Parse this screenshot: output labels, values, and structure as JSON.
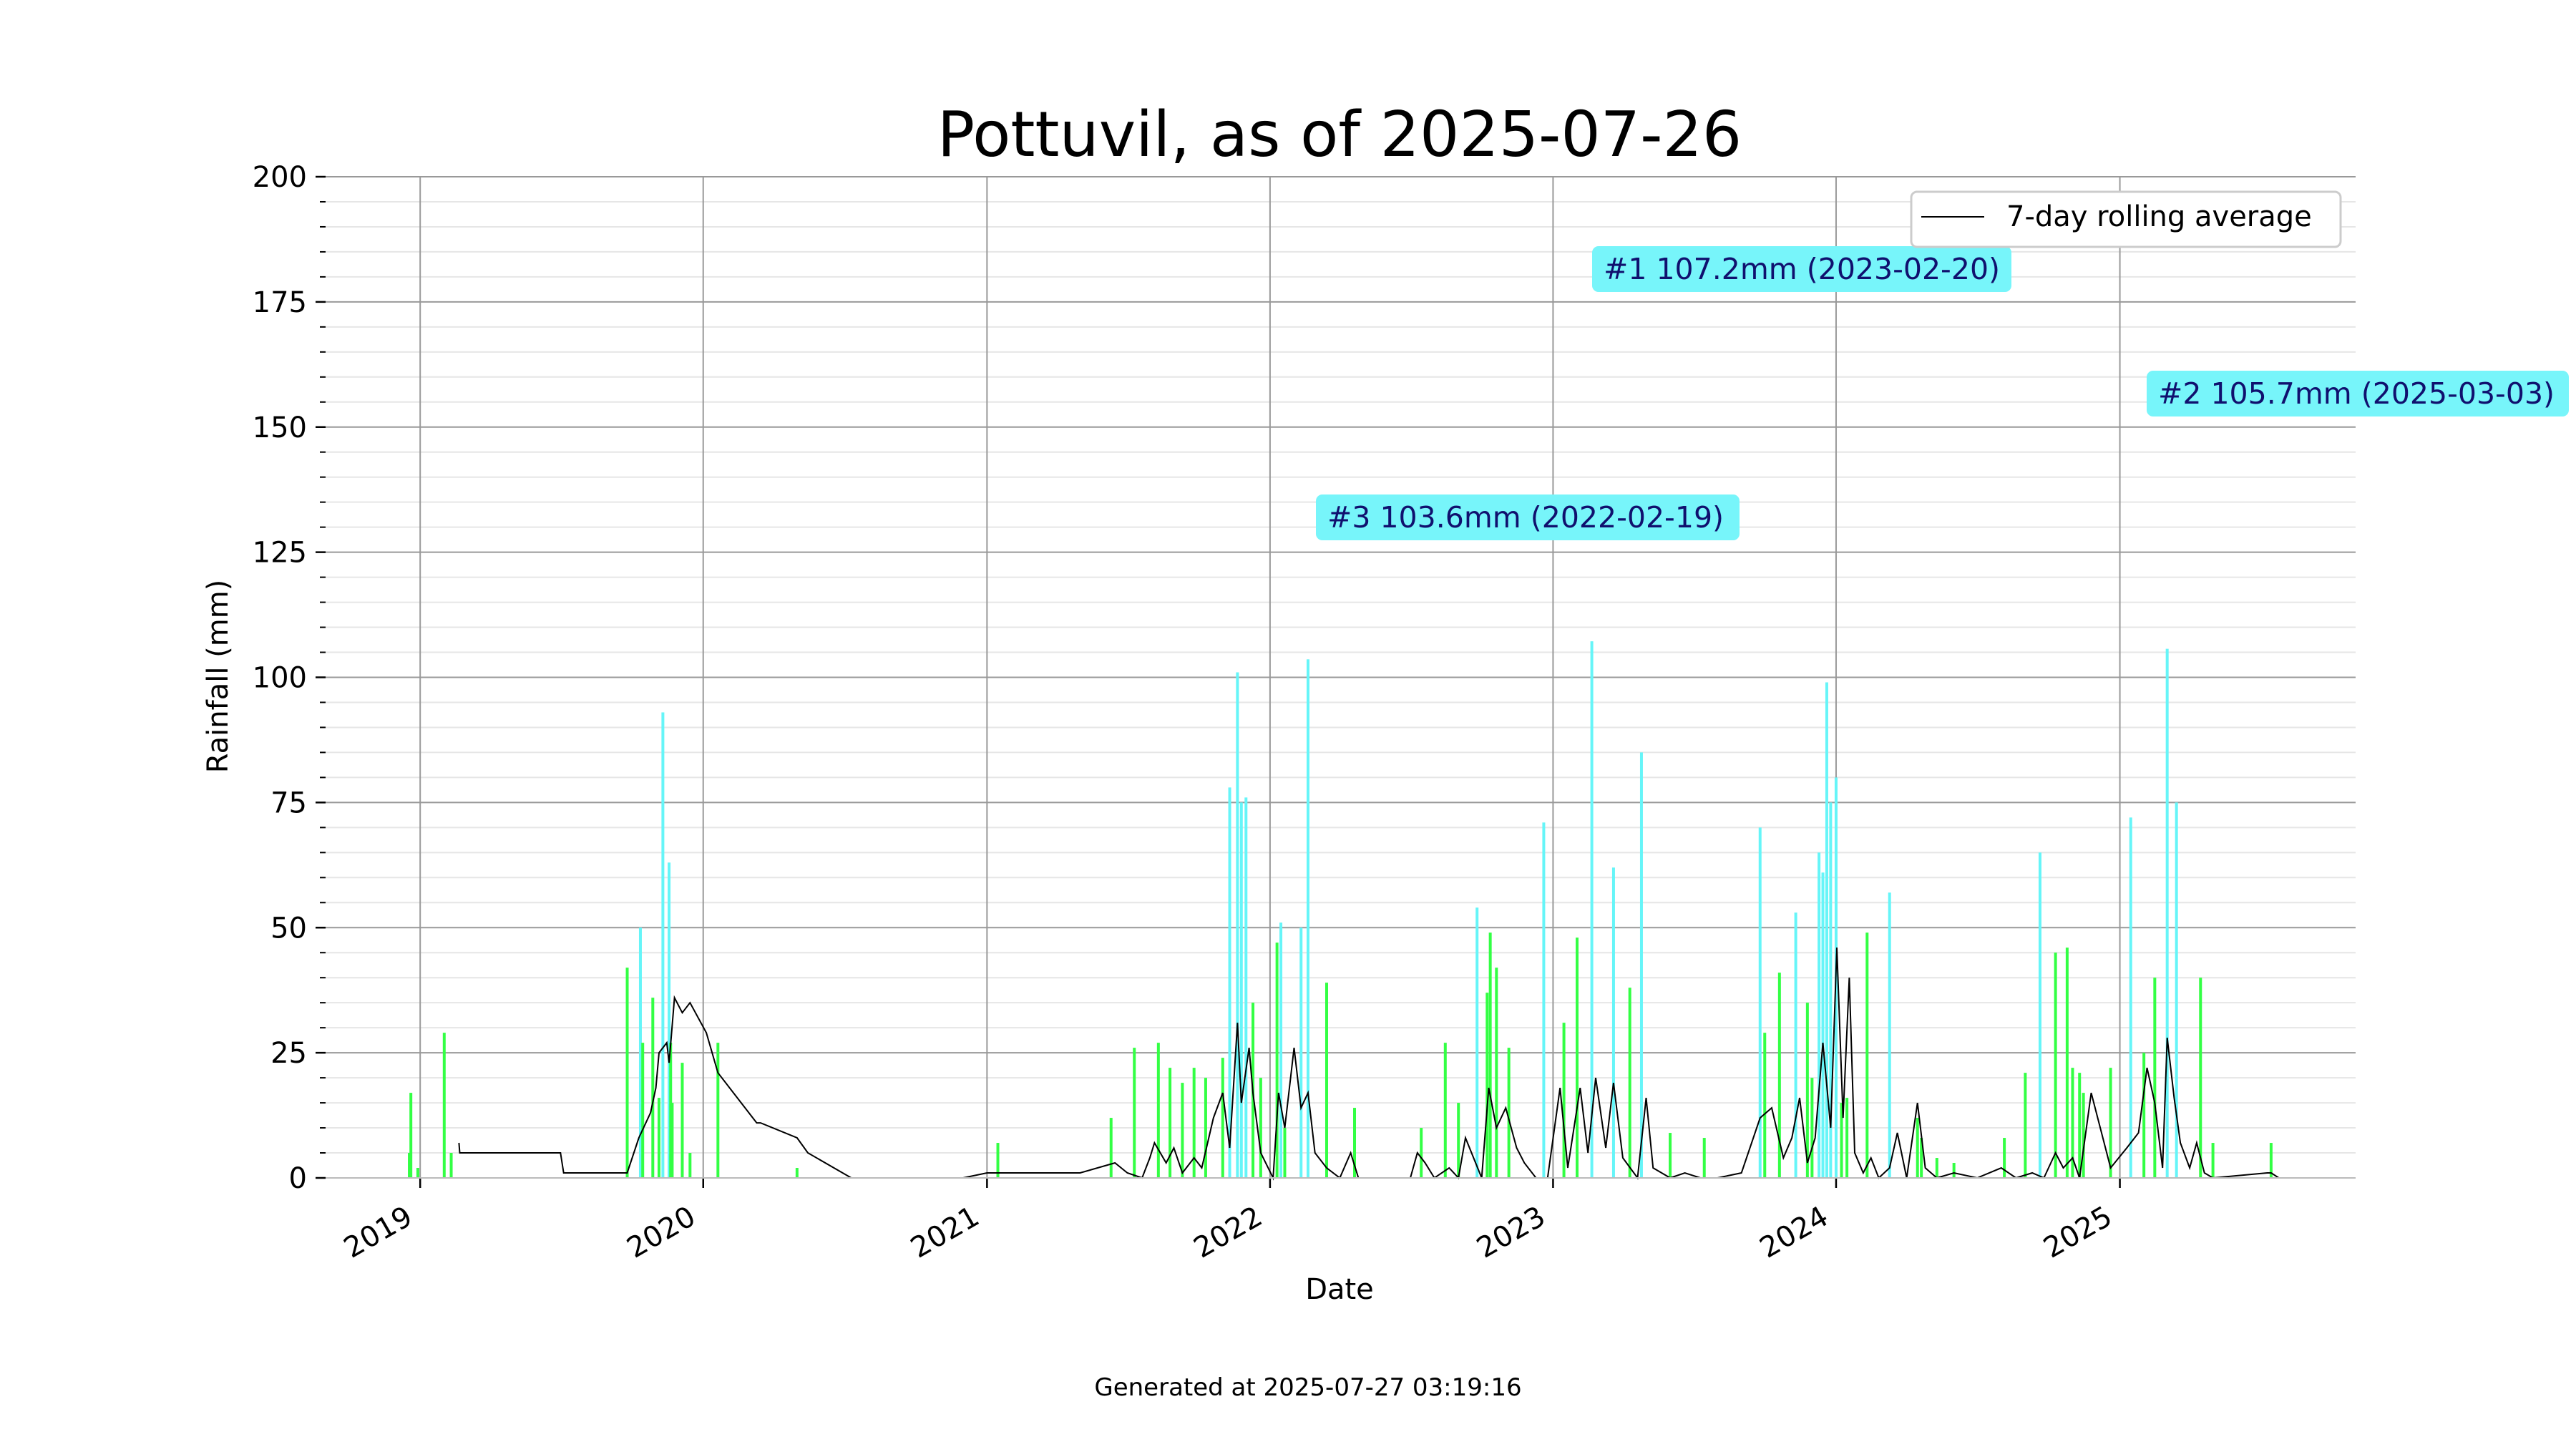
{
  "chart_data": {
    "type": "bar",
    "title": "Pottuvil, as of 2025-07-26",
    "xlabel": "Date",
    "ylabel": "Rainfall (mm)",
    "ylim": [
      0,
      200
    ],
    "xlim": [
      "2018-09-01",
      "2025-11-01"
    ],
    "y_ticks": [
      0,
      25,
      50,
      75,
      100,
      125,
      150,
      175,
      200
    ],
    "x_ticks": [
      "2019",
      "2020",
      "2021",
      "2022",
      "2023",
      "2024",
      "2025"
    ],
    "grid": true,
    "legend": {
      "position": "top-right",
      "entries": [
        "7-day rolling average"
      ]
    },
    "footer": "Generated at 2025-07-27 03:19:16",
    "colors": {
      "low": "#33ff44",
      "high": "#66f5f8",
      "line": "#000000",
      "label_box": "#77f5fa",
      "label_text": "#10106e"
    },
    "annotations": [
      {
        "rank": 1,
        "text": "#1 107.2mm (2023-02-20)",
        "date": "2023-02-20",
        "value": 107.2
      },
      {
        "rank": 2,
        "text": "#2 105.7mm (2025-03-03)",
        "date": "2025-03-03",
        "value": 105.7
      },
      {
        "rank": 3,
        "text": "#3 103.6mm (2022-02-19)",
        "date": "2022-02-19",
        "value": 103.6
      }
    ],
    "series": [
      {
        "name": "daily rainfall",
        "type": "bar",
        "x": [
          "2018-12-18",
          "2018-12-20",
          "2018-12-29",
          "2019-02-01",
          "2019-02-10",
          "2019-09-25",
          "2019-10-12",
          "2019-10-15",
          "2019-10-28",
          "2019-11-05",
          "2019-11-10",
          "2019-11-18",
          "2019-11-20",
          "2019-11-22",
          "2019-12-05",
          "2019-12-15",
          "2020-01-20",
          "2020-05-01",
          "2021-01-15",
          "2021-06-10",
          "2021-07-10",
          "2021-08-10",
          "2021-08-25",
          "2021-09-10",
          "2021-09-25",
          "2021-10-10",
          "2021-11-01",
          "2021-11-10",
          "2021-11-20",
          "2021-11-25",
          "2021-12-01",
          "2021-12-10",
          "2021-12-20",
          "2022-01-10",
          "2022-01-15",
          "2022-01-20",
          "2022-02-10",
          "2022-02-19",
          "2022-03-15",
          "2022-04-20",
          "2022-07-15",
          "2022-08-15",
          "2022-09-01",
          "2022-09-25",
          "2022-10-08",
          "2022-10-12",
          "2022-10-20",
          "2022-11-05",
          "2022-12-20",
          "2023-01-15",
          "2023-02-01",
          "2023-02-20",
          "2023-03-20",
          "2023-04-10",
          "2023-04-25",
          "2023-06-01",
          "2023-07-15",
          "2023-09-25",
          "2023-10-01",
          "2023-10-20",
          "2023-11-10",
          "2023-11-25",
          "2023-12-01",
          "2023-12-10",
          "2023-12-15",
          "2023-12-20",
          "2023-12-25",
          "2024-01-01",
          "2024-01-08",
          "2024-01-15",
          "2024-02-10",
          "2024-03-10",
          "2024-04-15",
          "2024-04-20",
          "2024-05-10",
          "2024-06-01",
          "2024-08-05",
          "2024-09-01",
          "2024-09-20",
          "2024-10-10",
          "2024-10-25",
          "2024-11-01",
          "2024-11-10",
          "2024-11-15",
          "2024-12-20",
          "2025-01-15",
          "2025-02-01",
          "2025-02-15",
          "2025-03-03",
          "2025-03-15",
          "2025-04-15",
          "2025-05-01",
          "2025-07-15"
        ],
        "values": [
          5,
          17,
          2,
          29,
          5,
          42,
          50,
          27,
          36,
          16,
          93,
          63,
          27,
          15,
          23,
          5,
          27,
          2,
          7,
          12,
          26,
          27,
          22,
          19,
          22,
          20,
          24,
          78,
          101,
          75,
          76,
          35,
          20,
          47,
          51,
          10,
          50,
          103.6,
          39,
          14,
          10,
          27,
          15,
          54,
          37,
          49,
          42,
          26,
          71,
          31,
          48,
          107.2,
          62,
          38,
          85,
          9,
          8,
          70,
          29,
          41,
          53,
          35,
          20,
          65,
          61,
          99,
          75,
          80,
          15,
          16,
          49,
          57,
          12,
          8,
          4,
          3,
          8,
          21,
          65,
          45,
          46,
          22,
          21,
          17,
          22,
          72,
          25,
          40,
          105.7,
          75,
          40,
          7,
          7
        ]
      },
      {
        "name": "7-day rolling average",
        "type": "line",
        "x": [
          "2019-02-20",
          "2019-02-21",
          "2019-07-01",
          "2019-07-05",
          "2019-09-25",
          "2019-10-10",
          "2019-10-25",
          "2019-11-01",
          "2019-11-05",
          "2019-11-15",
          "2019-11-18",
          "2019-11-25",
          "2019-12-05",
          "2019-12-15",
          "2020-01-05",
          "2020-01-20",
          "2020-03-10",
          "2020-03-15",
          "2020-05-01",
          "2020-05-15",
          "2020-07-10",
          "2020-12-01",
          "2021-01-01",
          "2021-05-01",
          "2021-06-15",
          "2021-07-01",
          "2021-07-20",
          "2021-07-30",
          "2021-08-05",
          "2021-08-20",
          "2021-08-30",
          "2021-09-10",
          "2021-09-25",
          "2021-10-05",
          "2021-10-20",
          "2021-11-01",
          "2021-11-10",
          "2021-11-20",
          "2021-11-25",
          "2021-12-05",
          "2021-12-10",
          "2021-12-20",
          "2022-01-05",
          "2022-01-12",
          "2022-01-20",
          "2022-02-01",
          "2022-02-10",
          "2022-02-19",
          "2022-02-28",
          "2022-03-15",
          "2022-04-01",
          "2022-04-15",
          "2022-04-25",
          "2022-05-10",
          "2022-07-01",
          "2022-07-10",
          "2022-07-20",
          "2022-08-01",
          "2022-08-20",
          "2022-09-01",
          "2022-09-10",
          "2022-10-01",
          "2022-10-10",
          "2022-10-20",
          "2022-11-01",
          "2022-11-15",
          "2022-11-25",
          "2022-12-10",
          "2022-12-25",
          "2023-01-10",
          "2023-01-20",
          "2023-02-05",
          "2023-02-15",
          "2023-02-25",
          "2023-03-10",
          "2023-03-20",
          "2023-04-01",
          "2023-04-20",
          "2023-05-01",
          "2023-05-10",
          "2023-06-01",
          "2023-06-20",
          "2023-07-10",
          "2023-08-01",
          "2023-09-01",
          "2023-09-25",
          "2023-10-10",
          "2023-10-25",
          "2023-11-05",
          "2023-11-15",
          "2023-11-25",
          "2023-12-05",
          "2023-12-15",
          "2023-12-25",
          "2024-01-02",
          "2024-01-10",
          "2024-01-18",
          "2024-01-25",
          "2024-02-05",
          "2024-02-15",
          "2024-02-25",
          "2024-03-10",
          "2024-03-20",
          "2024-04-01",
          "2024-04-15",
          "2024-04-25",
          "2024-05-10",
          "2024-06-01",
          "2024-07-01",
          "2024-08-01",
          "2024-08-20",
          "2024-09-10",
          "2024-09-25",
          "2024-10-10",
          "2024-10-20",
          "2024-11-01",
          "2024-11-10",
          "2024-11-25",
          "2024-12-20",
          "2025-01-10",
          "2025-01-25",
          "2025-02-05",
          "2025-02-15",
          "2025-02-25",
          "2025-03-03",
          "2025-03-12",
          "2025-03-20",
          "2025-04-01",
          "2025-04-10",
          "2025-04-20",
          "2025-05-01",
          "2025-07-10",
          "2025-07-15",
          "2025-07-25"
        ],
        "values": [
          7,
          5,
          5,
          1,
          1,
          8,
          13,
          18,
          25,
          27,
          23,
          36,
          33,
          35,
          29,
          21,
          11,
          11,
          8,
          5,
          0,
          0,
          1,
          1,
          3,
          1,
          0,
          4,
          7,
          3,
          6,
          1,
          4,
          2,
          12,
          17,
          6,
          31,
          15,
          26,
          17,
          5,
          0,
          17,
          10,
          26,
          14,
          17,
          5,
          2,
          0,
          5,
          0,
          0,
          0,
          5,
          3,
          0,
          2,
          0,
          8,
          0,
          18,
          10,
          14,
          6,
          3,
          0,
          0,
          18,
          2,
          18,
          5,
          20,
          6,
          19,
          4,
          0,
          16,
          2,
          0,
          1,
          0,
          0,
          1,
          12,
          14,
          4,
          8,
          16,
          3,
          8,
          27,
          10,
          46,
          12,
          40,
          5,
          1,
          4,
          0,
          2,
          9,
          0,
          15,
          2,
          0,
          1,
          0,
          2,
          0,
          1,
          0,
          5,
          2,
          4,
          0,
          17,
          2,
          6,
          9,
          22,
          15,
          2,
          28,
          16,
          7,
          2,
          7,
          1,
          0,
          1,
          1,
          0
        ]
      }
    ]
  }
}
